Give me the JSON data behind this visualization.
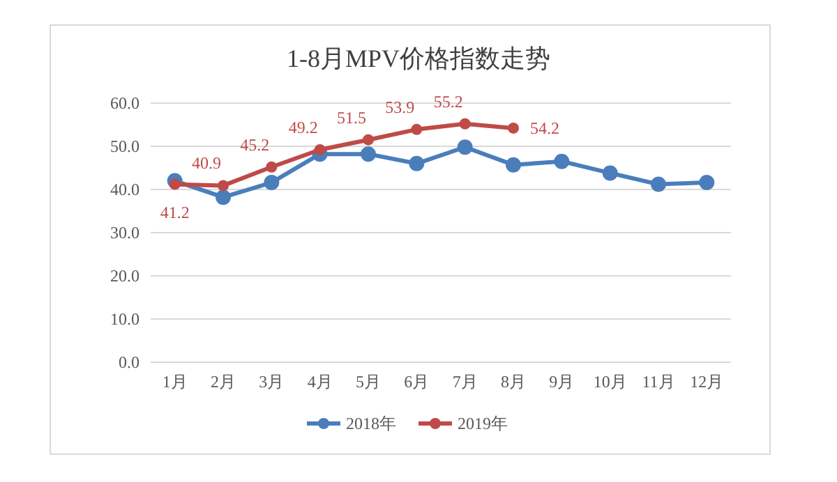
{
  "chart_data": {
    "type": "line",
    "title": "1-8月MPV价格指数走势",
    "categories": [
      "1月",
      "2月",
      "3月",
      "4月",
      "5月",
      "6月",
      "7月",
      "8月",
      "9月",
      "10月",
      "11月",
      "12月"
    ],
    "series": [
      {
        "name": "2018年",
        "color": "#4a7ebb",
        "values": [
          42.0,
          38.2,
          41.6,
          48.2,
          48.2,
          46.0,
          49.8,
          45.7,
          46.5,
          43.8,
          41.2,
          41.6
        ]
      },
      {
        "name": "2019年",
        "color": "#be4b48",
        "values": [
          41.2,
          40.9,
          45.2,
          49.2,
          51.5,
          53.9,
          55.2,
          54.2,
          null,
          null,
          null,
          null
        ],
        "value_labels": [
          "41.2",
          "40.9",
          "45.2",
          "49.2",
          "51.5",
          "53.9",
          "55.2",
          "54.2",
          null,
          null,
          null,
          null
        ]
      }
    ],
    "ylim": [
      0,
      60
    ],
    "yticks": [
      "0.0",
      "10.0",
      "20.0",
      "30.0",
      "40.0",
      "50.0",
      "60.0"
    ],
    "grid": "y",
    "legend": "bottom",
    "marker": "circle",
    "line_style": "solid"
  }
}
